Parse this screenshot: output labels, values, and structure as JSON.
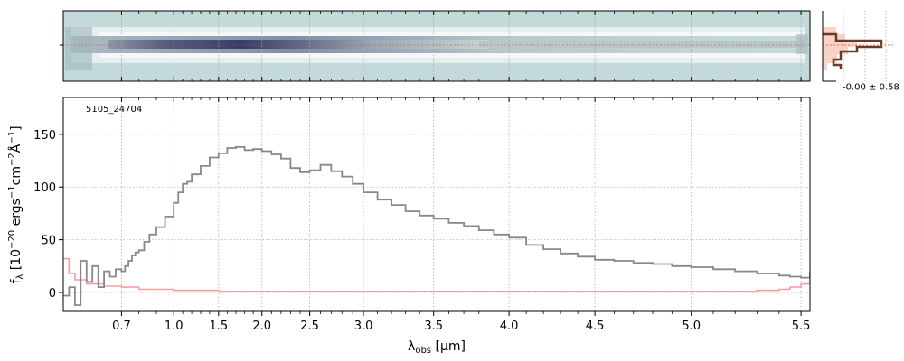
{
  "chart_data": {
    "type": "line",
    "title": "",
    "annotation": "5105_24704",
    "xlabel": "λobs [μm]",
    "ylabel": "fλ [10−20 ergs−1cm−2Å−1]",
    "xlabel_parts": {
      "sym": "λ",
      "sub": "obs",
      "unit": " [μm]"
    },
    "ylabel_parts": {
      "sym": "f",
      "sub": "λ",
      "a": " [10",
      "e1": "−20",
      "b": " ergs",
      "e2": "−1",
      "c": "cm",
      "e3": "−2",
      "d": "Å",
      "e4": "−1",
      "f": "]"
    },
    "x_scale": "spectral-pixel (non-linear)",
    "x_ticks": [
      0.7,
      1.0,
      1.5,
      2.0,
      2.5,
      3.0,
      3.5,
      4.0,
      4.5,
      5.0,
      5.5
    ],
    "x_tick_labels": [
      "0.7",
      "1.0",
      "1.5",
      "2.0",
      "2.5",
      "3.0",
      "3.5",
      "4.0",
      "4.5",
      "5.0",
      "5.5"
    ],
    "x_minor_ticks": [
      0.8,
      0.9,
      1.1,
      1.2,
      1.3,
      1.4,
      1.6,
      1.7,
      1.8,
      1.9,
      2.1,
      2.2,
      2.3,
      2.4,
      2.6,
      2.7,
      2.8,
      2.9,
      3.1,
      3.2,
      3.3,
      3.4,
      3.6,
      3.7,
      3.8,
      3.9,
      4.1,
      4.2,
      4.3,
      4.4,
      4.6,
      4.7,
      4.8,
      4.9,
      5.1,
      5.2,
      5.3,
      5.4
    ],
    "xlim": [
      0.6,
      5.52
    ],
    "y_ticks": [
      0,
      50,
      100,
      150
    ],
    "y_tick_labels": [
      "0",
      "50",
      "100",
      "150"
    ],
    "ylim": [
      -18,
      185
    ],
    "grid": true,
    "series": [
      {
        "color": "#888888",
        "x": [
          0.6,
          0.61,
          0.62,
          0.63,
          0.64,
          0.65,
          0.66,
          0.67,
          0.68,
          0.69,
          0.7,
          0.72,
          0.74,
          0.76,
          0.78,
          0.8,
          0.83,
          0.86,
          0.9,
          0.95,
          1.0,
          1.05,
          1.1,
          1.15,
          1.2,
          1.3,
          1.4,
          1.5,
          1.6,
          1.7,
          1.8,
          1.9,
          2.0,
          2.1,
          2.2,
          2.3,
          2.4,
          2.5,
          2.6,
          2.7,
          2.8,
          2.9,
          3.0,
          3.1,
          3.2,
          3.3,
          3.4,
          3.5,
          3.6,
          3.7,
          3.8,
          3.9,
          4.0,
          4.1,
          4.2,
          4.3,
          4.4,
          4.5,
          4.6,
          4.7,
          4.8,
          4.9,
          5.0,
          5.1,
          5.2,
          5.3,
          5.4,
          5.45,
          5.5,
          5.52
        ],
        "y": [
          -3,
          5,
          -12,
          30,
          10,
          25,
          5,
          20,
          15,
          22,
          20,
          25,
          30,
          35,
          38,
          40,
          48,
          55,
          62,
          72,
          85,
          95,
          103,
          105,
          112,
          120,
          128,
          132,
          137,
          138,
          135,
          136,
          134,
          131,
          127,
          118,
          114,
          116,
          121,
          115,
          110,
          103,
          95,
          88,
          83,
          77,
          73,
          70,
          66,
          63,
          59,
          55,
          52,
          45,
          41,
          37,
          34,
          31,
          30,
          28,
          27,
          25,
          24,
          22,
          20,
          18,
          16,
          15,
          14,
          20
        ]
      },
      {
        "color": "#f4a0a0",
        "x": [
          0.6,
          0.61,
          0.62,
          0.64,
          0.67,
          0.7,
          0.8,
          1.0,
          1.5,
          2.0,
          2.5,
          3.0,
          3.5,
          4.0,
          4.5,
          5.0,
          5.3,
          5.4,
          5.45,
          5.5,
          5.52
        ],
        "y": [
          32,
          18,
          12,
          8,
          6,
          5,
          3,
          2,
          1,
          1,
          1,
          1,
          1,
          1,
          1,
          1,
          2,
          3,
          5,
          8,
          12
        ]
      }
    ],
    "side_panel": {
      "label": "-0.00 ± 0.58"
    }
  }
}
